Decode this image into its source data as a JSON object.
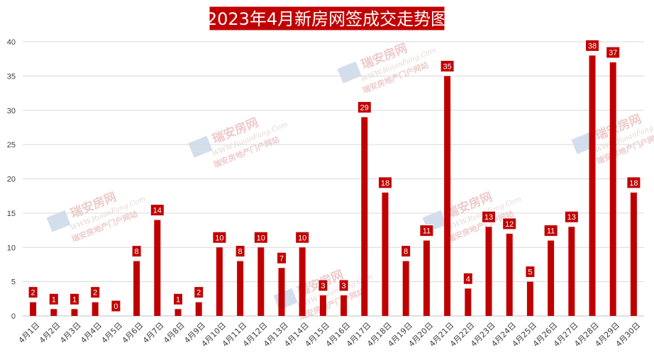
{
  "chart_data": {
    "type": "bar",
    "title": "2023年4月新房网签成交走势图",
    "categories": [
      "4月1日",
      "4月2日",
      "4月3日",
      "4月4日",
      "4月5日",
      "4月6日",
      "4月7日",
      "4月8日",
      "4月9日",
      "4月10日",
      "4月11日",
      "4月12日",
      "4月13日",
      "4月14日",
      "4月15日",
      "4月16日",
      "4月17日",
      "4月18日",
      "4月19日",
      "4月20日",
      "4月21日",
      "4月22日",
      "4月23日",
      "4月24日",
      "4月25日",
      "4月26日",
      "4月27日",
      "4月28日",
      "4月29日",
      "4月30日"
    ],
    "values": [
      2,
      1,
      1,
      2,
      0,
      8,
      14,
      1,
      2,
      10,
      8,
      10,
      7,
      10,
      3,
      3,
      29,
      18,
      8,
      11,
      35,
      4,
      13,
      12,
      5,
      11,
      13,
      38,
      37,
      18
    ],
    "ylim": [
      0,
      40
    ],
    "yticks": [
      0,
      5,
      10,
      15,
      20,
      25,
      30,
      35,
      40
    ],
    "grid": true,
    "colors": {
      "bar": "#c00000",
      "title_bg": "#c00000",
      "label_bg": "#c00000",
      "grid": "#d9d9d9"
    }
  },
  "watermark": {
    "name": "瑞安房网",
    "url": "WWW.RuianFang.Com",
    "slogan": "瑞安房地产门户网站"
  }
}
